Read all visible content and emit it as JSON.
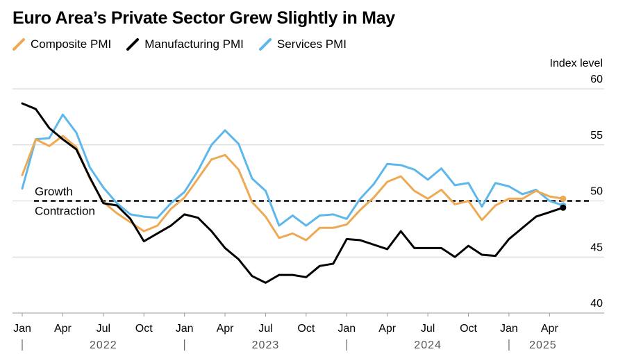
{
  "chart_data": {
    "type": "line",
    "title": "Euro Area’s Private Sector Grew Slightly in May",
    "ylabel": "Index level",
    "ylim": [
      40,
      60
    ],
    "yticks": [
      40,
      45,
      50,
      55,
      60
    ],
    "reference_line": {
      "value": 50,
      "label_above": "Growth",
      "label_below": "Contraction"
    },
    "x_tick_labels": [
      {
        "index": 0,
        "label": "Jan"
      },
      {
        "index": 3,
        "label": "Apr"
      },
      {
        "index": 6,
        "label": "Jul"
      },
      {
        "index": 9,
        "label": "Oct"
      },
      {
        "index": 12,
        "label": "Jan"
      },
      {
        "index": 15,
        "label": "Apr"
      },
      {
        "index": 18,
        "label": "Jul"
      },
      {
        "index": 21,
        "label": "Oct"
      },
      {
        "index": 24,
        "label": "Jan"
      },
      {
        "index": 27,
        "label": "Apr"
      },
      {
        "index": 30,
        "label": "Jul"
      },
      {
        "index": 33,
        "label": "Oct"
      },
      {
        "index": 36,
        "label": "Jan"
      },
      {
        "index": 39,
        "label": "Apr"
      }
    ],
    "years": [
      {
        "start_index": 0,
        "label": "2022"
      },
      {
        "start_index": 12,
        "label": "2023"
      },
      {
        "start_index": 24,
        "label": "2024"
      },
      {
        "start_index": 36,
        "label": "2025"
      }
    ],
    "series": [
      {
        "name": "Composite PMI",
        "color": "#EDA954",
        "start_index": 0,
        "values": [
          52.3,
          55.5,
          54.9,
          55.8,
          54.8,
          52.0,
          49.9,
          48.9,
          48.1,
          47.3,
          47.8,
          49.3,
          50.3,
          52.0,
          53.7,
          54.1,
          52.8,
          49.9,
          48.6,
          46.7,
          47.1,
          46.5,
          47.6,
          47.6,
          47.9,
          49.2,
          50.3,
          51.7,
          52.2,
          50.9,
          50.2,
          51.0,
          49.7,
          50.0,
          48.3,
          49.6,
          50.2,
          50.2,
          50.9,
          50.4,
          50.2
        ],
        "end_marker": true
      },
      {
        "name": "Manufacturing PMI",
        "color": "#000000",
        "start_index": 0,
        "values": [
          58.7,
          58.2,
          56.5,
          55.5,
          54.6,
          52.1,
          49.8,
          49.6,
          48.4,
          46.4,
          47.1,
          47.8,
          48.8,
          48.5,
          47.3,
          45.8,
          44.8,
          43.3,
          42.7,
          43.4,
          43.4,
          43.2,
          44.2,
          44.4,
          46.6,
          46.5,
          46.1,
          45.7,
          47.3,
          45.8,
          45.8,
          45.8,
          45.0,
          46.0,
          45.2,
          45.1,
          46.6,
          47.6,
          48.6,
          49.0,
          49.4
        ],
        "end_marker": true
      },
      {
        "name": "Services PMI",
        "color": "#5DB7EB",
        "start_index": 0,
        "values": [
          51.1,
          55.5,
          55.6,
          57.7,
          56.1,
          53.0,
          51.2,
          49.8,
          48.8,
          48.6,
          48.5,
          49.8,
          50.8,
          52.7,
          55.0,
          56.3,
          55.1,
          52.0,
          50.9,
          47.8,
          48.7,
          47.8,
          48.7,
          48.8,
          48.4,
          50.2,
          51.5,
          53.3,
          53.2,
          52.8,
          51.9,
          52.9,
          51.4,
          51.6,
          49.5,
          51.6,
          51.3,
          50.6,
          51.0,
          50.0,
          49.6
        ],
        "end_marker": true
      }
    ],
    "legend_position": "top-left"
  }
}
